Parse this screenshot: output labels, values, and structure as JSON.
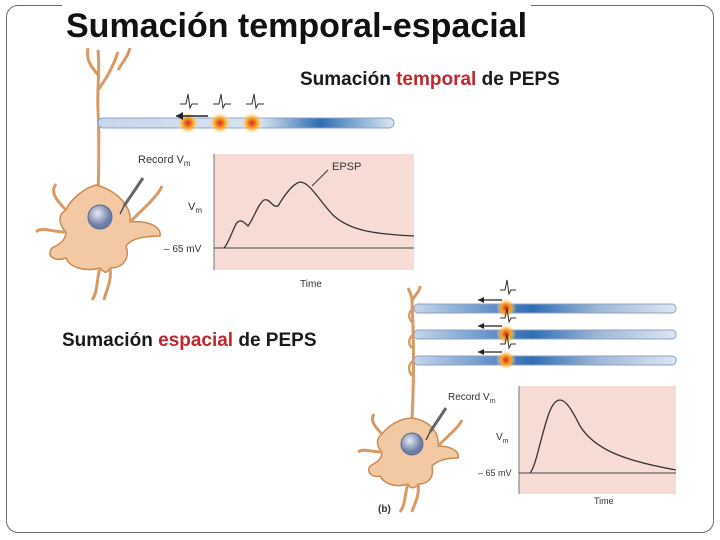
{
  "slide": {
    "title": "Sumación temporal-espacial"
  },
  "temporal_panel": {
    "caption_before": "Sumación ",
    "caption_highlight": "temporal",
    "caption_after": " de PEPS",
    "record_label": "Record V",
    "record_sub": "m",
    "vm_label": "V",
    "vm_sub": "m",
    "rest_label": "– 65 mV",
    "epsp_label": "EPSP",
    "time_label": "Time"
  },
  "spatial_panel": {
    "caption_before": "Sumación ",
    "caption_highlight": "espacial",
    "caption_after": " de PEPS",
    "record_label": "Record V",
    "record_sub": "m",
    "vm_label": "V",
    "vm_sub": "m",
    "rest_label": "– 65 mV",
    "time_label": "Time",
    "panel_letter": "(b)"
  },
  "colors": {
    "accent_red": "#c0272d",
    "graph_bg": "#f7dcd6",
    "neuron_fill": "#f3c9a4",
    "neuron_stroke": "#c98a55",
    "axon_blue": "#9fb6d6"
  }
}
